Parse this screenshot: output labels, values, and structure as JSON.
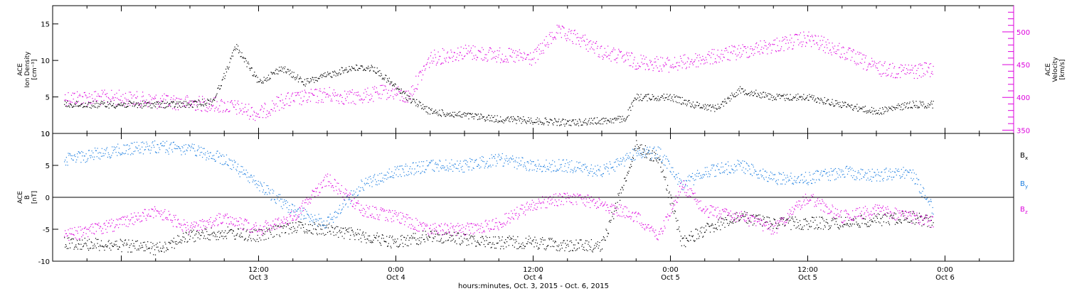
{
  "chart_data": [
    {
      "type": "scatter",
      "panel": "plasma",
      "x_axis_type": "datetime",
      "xlim": [
        "2015-10-02T18:00",
        "2015-10-06T06:00"
      ],
      "ylabel_left": [
        "ACE",
        "Ion Density",
        "[cm⁻³]"
      ],
      "ylim_left": [
        0,
        17.5
      ],
      "yticks_left": [
        0,
        5,
        10,
        15
      ],
      "ylabel_right": [
        "ACE",
        "Velocity",
        "[km/s]"
      ],
      "ylim_right": [
        345,
        540
      ],
      "yticks_right": [
        350,
        400,
        450,
        500
      ],
      "series": [
        {
          "name": "Ion Density",
          "axis": "left",
          "color": "#000000",
          "x": [
            "2015-10-02T19:00",
            "2015-10-02T21:00",
            "2015-10-03T00:00",
            "2015-10-03T03:00",
            "2015-10-03T06:00",
            "2015-10-03T08:00",
            "2015-10-03T09:00",
            "2015-10-03T10:00",
            "2015-10-03T12:00",
            "2015-10-03T14:00",
            "2015-10-03T16:00",
            "2015-10-03T18:00",
            "2015-10-03T20:00",
            "2015-10-03T22:00",
            "2015-10-03T23:30",
            "2015-10-04T01:00",
            "2015-10-04T03:00",
            "2015-10-04T06:00",
            "2015-10-04T09:00",
            "2015-10-04T12:00",
            "2015-10-04T15:00",
            "2015-10-04T18:00",
            "2015-10-04T20:00",
            "2015-10-04T21:00",
            "2015-10-05T00:00",
            "2015-10-05T02:00",
            "2015-10-05T04:00",
            "2015-10-05T06:00",
            "2015-10-05T09:00",
            "2015-10-05T12:00",
            "2015-10-05T15:00",
            "2015-10-05T18:00",
            "2015-10-05T21:00",
            "2015-10-05T23:00"
          ],
          "y": [
            4.0,
            4.0,
            4.0,
            4.0,
            4.0,
            4.5,
            8.0,
            12.0,
            7.0,
            9.0,
            7.0,
            8.0,
            9.0,
            9.0,
            7.0,
            5.0,
            3.0,
            2.5,
            2.0,
            1.8,
            1.5,
            1.8,
            2.0,
            5.0,
            5.0,
            4.0,
            3.5,
            6.0,
            5.0,
            5.0,
            4.0,
            3.0,
            4.0,
            4.0
          ]
        },
        {
          "name": "Velocity",
          "axis": "right",
          "color": "#dd00dd",
          "x": [
            "2015-10-02T19:00",
            "2015-10-02T21:00",
            "2015-10-03T00:00",
            "2015-10-03T03:00",
            "2015-10-03T06:00",
            "2015-10-03T08:00",
            "2015-10-03T10:00",
            "2015-10-03T12:00",
            "2015-10-03T14:00",
            "2015-10-03T16:00",
            "2015-10-03T18:00",
            "2015-10-03T20:00",
            "2015-10-03T22:00",
            "2015-10-03T23:30",
            "2015-10-04T01:00",
            "2015-10-04T03:00",
            "2015-10-04T06:00",
            "2015-10-04T09:00",
            "2015-10-04T12:00",
            "2015-10-04T14:00",
            "2015-10-04T16:00",
            "2015-10-04T18:00",
            "2015-10-04T20:00",
            "2015-10-04T21:00",
            "2015-10-05T00:00",
            "2015-10-05T03:00",
            "2015-10-05T06:00",
            "2015-10-05T09:00",
            "2015-10-05T12:00",
            "2015-10-05T15:00",
            "2015-10-05T18:00",
            "2015-10-05T21:00",
            "2015-10-05T23:00"
          ],
          "y": [
            400,
            400,
            400,
            395,
            392,
            390,
            385,
            375,
            395,
            400,
            405,
            400,
            405,
            410,
            400,
            460,
            470,
            465,
            460,
            500,
            490,
            470,
            460,
            455,
            450,
            460,
            470,
            480,
            490,
            470,
            445,
            440,
            445
          ]
        }
      ]
    },
    {
      "type": "scatter",
      "panel": "magnetic-field",
      "x_axis_type": "datetime",
      "xlim": [
        "2015-10-02T18:00",
        "2015-10-06T06:00"
      ],
      "ylabel_left": [
        "ACE",
        "B",
        "[nT]"
      ],
      "ylim": [
        -10,
        10
      ],
      "yticks": [
        -10,
        -5,
        0,
        5,
        10
      ],
      "zero_line": true,
      "xticks": [
        {
          "t": "2015-10-03T12:00",
          "label": "12:00",
          "sublabel": "Oct 3"
        },
        {
          "t": "2015-10-04T00:00",
          "label": "0:00",
          "sublabel": "Oct 4"
        },
        {
          "t": "2015-10-04T12:00",
          "label": "12:00",
          "sublabel": "Oct 4"
        },
        {
          "t": "2015-10-05T00:00",
          "label": "0:00",
          "sublabel": "Oct 5"
        },
        {
          "t": "2015-10-05T12:00",
          "label": "12:00",
          "sublabel": "Oct 5"
        },
        {
          "t": "2015-10-06T00:00",
          "label": "0:00",
          "sublabel": "Oct 6"
        }
      ],
      "xlabel": "hours:minutes, Oct.  3, 2015 - Oct.  6, 2015",
      "legend": [
        {
          "base": "B",
          "sub": "x",
          "color": "#000000"
        },
        {
          "base": "B",
          "sub": "y",
          "color": "#1e7fe0"
        },
        {
          "base": "B",
          "sub": "z",
          "color": "#dd00dd"
        }
      ],
      "series": [
        {
          "name": "Bx",
          "color": "#000000",
          "x": [
            "2015-10-02T19:00",
            "2015-10-03T00:00",
            "2015-10-03T03:00",
            "2015-10-03T06:00",
            "2015-10-03T09:00",
            "2015-10-03T12:00",
            "2015-10-03T15:00",
            "2015-10-03T18:00",
            "2015-10-03T21:00",
            "2015-10-04T00:00",
            "2015-10-04T03:00",
            "2015-10-04T06:00",
            "2015-10-04T09:00",
            "2015-10-04T12:00",
            "2015-10-04T15:00",
            "2015-10-04T18:00",
            "2015-10-04T21:00",
            "2015-10-04T23:00",
            "2015-10-05T01:00",
            "2015-10-05T03:00",
            "2015-10-05T06:00",
            "2015-10-05T09:00",
            "2015-10-05T12:00",
            "2015-10-05T15:00",
            "2015-10-05T18:00",
            "2015-10-05T21:00",
            "2015-10-05T23:00"
          ],
          "y": [
            -7,
            -7.5,
            -8,
            -6,
            -5.5,
            -6,
            -4.5,
            -5,
            -6,
            -7,
            -6,
            -6.5,
            -7,
            -7,
            -7.5,
            -7.5,
            8,
            6,
            -7,
            -5,
            -3,
            -4,
            -4,
            -4,
            -3.5,
            -3,
            -4
          ]
        },
        {
          "name": "By",
          "color": "#1e7fe0",
          "x": [
            "2015-10-02T19:00",
            "2015-10-03T00:00",
            "2015-10-03T03:00",
            "2015-10-03T06:00",
            "2015-10-03T09:00",
            "2015-10-03T12:00",
            "2015-10-03T15:00",
            "2015-10-03T18:00",
            "2015-10-03T21:00",
            "2015-10-04T00:00",
            "2015-10-04T03:00",
            "2015-10-04T06:00",
            "2015-10-04T09:00",
            "2015-10-04T12:00",
            "2015-10-04T15:00",
            "2015-10-04T18:00",
            "2015-10-04T21:00",
            "2015-10-04T23:00",
            "2015-10-05T01:00",
            "2015-10-05T03:00",
            "2015-10-05T06:00",
            "2015-10-05T09:00",
            "2015-10-05T12:00",
            "2015-10-05T15:00",
            "2015-10-05T18:00",
            "2015-10-05T21:00",
            "2015-10-05T23:00"
          ],
          "y": [
            6,
            7.5,
            8,
            7.5,
            6,
            2,
            -2,
            -4,
            2,
            4,
            5,
            5,
            6,
            5,
            5,
            4,
            7,
            7,
            2,
            4,
            5,
            3,
            3,
            4,
            3.5,
            4,
            -2
          ]
        },
        {
          "name": "Bz",
          "color": "#dd00dd",
          "x": [
            "2015-10-02T19:00",
            "2015-10-03T00:00",
            "2015-10-03T03:00",
            "2015-10-03T06:00",
            "2015-10-03T09:00",
            "2015-10-03T12:00",
            "2015-10-03T15:00",
            "2015-10-03T18:00",
            "2015-10-03T21:00",
            "2015-10-04T00:00",
            "2015-10-04T03:00",
            "2015-10-04T06:00",
            "2015-10-04T09:00",
            "2015-10-04T12:00",
            "2015-10-04T15:00",
            "2015-10-04T18:00",
            "2015-10-04T21:00",
            "2015-10-04T23:00",
            "2015-10-05T01:00",
            "2015-10-05T03:00",
            "2015-10-05T06:00",
            "2015-10-05T09:00",
            "2015-10-05T12:00",
            "2015-10-05T15:00",
            "2015-10-05T18:00",
            "2015-10-05T21:00",
            "2015-10-05T23:00"
          ],
          "y": [
            -6,
            -4,
            -2,
            -5,
            -3,
            -5,
            -3,
            3,
            -2,
            -3,
            -5,
            -5,
            -4,
            -1,
            0,
            -1,
            -3,
            -6,
            2,
            -2,
            -3,
            -5,
            0,
            -3,
            -2,
            -3,
            -4
          ]
        }
      ]
    }
  ]
}
